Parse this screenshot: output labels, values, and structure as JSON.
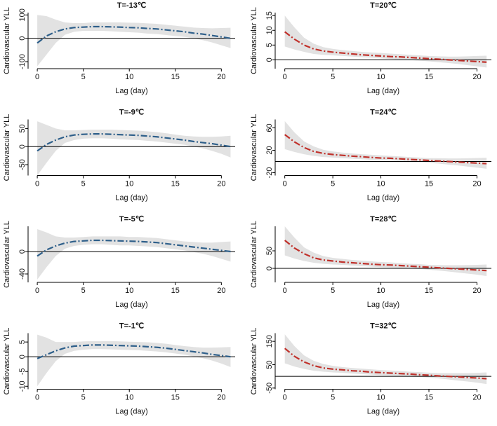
{
  "chart_data": [
    {
      "type": "line",
      "title": "T=-13℃",
      "ylabel": "Cardiovascular YLL",
      "xlabel": "Lag (day)",
      "color": "#2e5f8a",
      "band_color": "#e2e2e2",
      "hline": 0,
      "x": [
        0,
        1,
        2,
        3,
        4,
        5,
        6,
        7,
        8,
        9,
        10,
        11,
        12,
        13,
        14,
        15,
        16,
        17,
        18,
        19,
        20,
        21
      ],
      "xlim": [
        -1,
        21.5
      ],
      "xticks": [
        0,
        5,
        10,
        15,
        20
      ],
      "ylim": [
        -130,
        110
      ],
      "yticks": [
        -100,
        0,
        100
      ],
      "values": [
        -20,
        10,
        28,
        40,
        46,
        48,
        50,
        50,
        49,
        48,
        46,
        45,
        42,
        40,
        36,
        32,
        28,
        22,
        18,
        12,
        6,
        0
      ],
      "upper": [
        100,
        95,
        80,
        68,
        65,
        65,
        68,
        68,
        68,
        68,
        67,
        66,
        64,
        62,
        58,
        54,
        50,
        46,
        44,
        43,
        44,
        45
      ],
      "lower": [
        -120,
        -70,
        -20,
        15,
        28,
        32,
        32,
        32,
        30,
        28,
        26,
        24,
        20,
        18,
        14,
        10,
        6,
        0,
        -8,
        -18,
        -30,
        -42
      ]
    },
    {
      "type": "line",
      "title": "T=20℃",
      "ylabel": "Cardiovascular YLL",
      "xlabel": "Lag (day)",
      "color": "#c0312b",
      "band_color": "#e2e2e2",
      "hline": 0,
      "x": [
        0,
        1,
        2,
        3,
        4,
        5,
        6,
        7,
        8,
        9,
        10,
        11,
        12,
        13,
        14,
        15,
        16,
        17,
        18,
        19,
        20,
        21
      ],
      "xlim": [
        -1,
        21.5
      ],
      "xticks": [
        0,
        5,
        10,
        15,
        20
      ],
      "ylim": [
        -3,
        16
      ],
      "yticks": [
        0,
        5,
        10,
        15
      ],
      "values": [
        9.5,
        7,
        5,
        3.7,
        3,
        2.6,
        2.3,
        2,
        1.7,
        1.5,
        1.3,
        1.1,
        1,
        0.8,
        0.6,
        0.4,
        0.2,
        0,
        -0.2,
        -0.4,
        -0.6,
        -0.8
      ],
      "upper": [
        15,
        11,
        7.5,
        5.5,
        4.3,
        3.7,
        3.3,
        3,
        2.7,
        2.5,
        2.3,
        2.1,
        1.9,
        1.7,
        1.5,
        1.3,
        1.2,
        1.1,
        1.1,
        1.2,
        1.3,
        1.4
      ],
      "lower": [
        4.5,
        3.5,
        2.7,
        2,
        1.7,
        1.5,
        1.3,
        1.1,
        0.9,
        0.7,
        0.5,
        0.3,
        0.1,
        -0.1,
        -0.3,
        -0.5,
        -0.8,
        -1.1,
        -1.4,
        -1.8,
        -2.2,
        -2.6
      ]
    },
    {
      "type": "line",
      "title": "T=-9℃",
      "ylabel": "Cardiovascular YLL",
      "xlabel": "Lag (day)",
      "color": "#2e5f8a",
      "band_color": "#e2e2e2",
      "hline": 0,
      "x": [
        0,
        1,
        2,
        3,
        4,
        5,
        6,
        7,
        8,
        9,
        10,
        11,
        12,
        13,
        14,
        15,
        16,
        17,
        18,
        19,
        20,
        21
      ],
      "xlim": [
        -1,
        21.5
      ],
      "xticks": [
        0,
        5,
        10,
        15,
        20
      ],
      "ylim": [
        -80,
        75
      ],
      "yticks": [
        -50,
        0,
        50
      ],
      "values": [
        -12,
        6,
        18,
        27,
        32,
        34,
        35,
        35,
        34,
        33,
        32,
        31,
        29,
        27,
        24,
        21,
        18,
        14,
        11,
        8,
        4,
        0
      ],
      "upper": [
        70,
        60,
        50,
        45,
        45,
        46,
        47,
        47,
        47,
        46,
        45,
        44,
        42,
        40,
        37,
        33,
        30,
        28,
        27,
        27,
        28,
        30
      ],
      "lower": [
        -80,
        -45,
        -12,
        10,
        18,
        22,
        23,
        23,
        22,
        20,
        19,
        18,
        16,
        14,
        11,
        8,
        5,
        0,
        -5,
        -12,
        -20,
        -30
      ]
    },
    {
      "type": "line",
      "title": "T=24℃",
      "ylabel": "Cardiovascular YLL",
      "xlabel": "Lag (day)",
      "color": "#c0312b",
      "band_color": "#e2e2e2",
      "hline": 0,
      "x": [
        0,
        1,
        2,
        3,
        4,
        5,
        6,
        7,
        8,
        9,
        10,
        11,
        12,
        13,
        14,
        15,
        16,
        17,
        18,
        19,
        20,
        21
      ],
      "xlim": [
        -1,
        21.5
      ],
      "xticks": [
        0,
        5,
        10,
        15,
        20
      ],
      "ylim": [
        -25,
        75
      ],
      "yticks": [
        -20,
        20,
        60
      ],
      "values": [
        48,
        35,
        25,
        18,
        14.5,
        12.5,
        11,
        9.6,
        8.6,
        7.2,
        6.2,
        5.8,
        4.8,
        3.8,
        2.9,
        1.9,
        1,
        0,
        -1,
        -1.9,
        -2.9,
        -3.8
      ],
      "upper": [
        72,
        52,
        36,
        27,
        21,
        18,
        16,
        14.4,
        13,
        12,
        11,
        10,
        9,
        8,
        7,
        6,
        5.8,
        5.5,
        5.5,
        5.8,
        6.2,
        6.7
      ],
      "lower": [
        22,
        17,
        13,
        10,
        8,
        7,
        6,
        5,
        4,
        3,
        2,
        1.4,
        0.6,
        -0.4,
        -1.2,
        -2.4,
        -3.8,
        -5.4,
        -7,
        -9,
        -11,
        -13
      ]
    },
    {
      "type": "line",
      "title": "T=-5℃",
      "ylabel": "Cardiovascular YLL",
      "xlabel": "Lag (day)",
      "color": "#2e5f8a",
      "band_color": "#e2e2e2",
      "hline": 0,
      "x": [
        0,
        1,
        2,
        3,
        4,
        5,
        6,
        7,
        8,
        9,
        10,
        11,
        12,
        13,
        14,
        15,
        16,
        17,
        18,
        19,
        20,
        21
      ],
      "xlim": [
        -1,
        21.5
      ],
      "xticks": [
        0,
        5,
        10,
        15,
        20
      ],
      "ylim": [
        -55,
        45
      ],
      "yticks": [
        -40,
        0
      ],
      "values": [
        -8,
        3,
        10,
        15,
        18,
        19,
        20,
        20,
        19.5,
        19,
        18.5,
        18,
        17,
        16,
        14,
        12,
        10,
        8,
        6,
        4,
        2,
        0
      ],
      "upper": [
        40,
        34,
        27,
        25,
        25,
        26,
        27,
        27,
        27,
        27,
        26,
        26,
        25,
        24,
        22,
        20,
        18,
        17,
        16,
        16,
        17,
        18
      ],
      "lower": [
        -50,
        -28,
        -8,
        5,
        10,
        12,
        13,
        13,
        12,
        11,
        11,
        10,
        9,
        8,
        6,
        4,
        2,
        -1,
        -4,
        -8,
        -13,
        -18
      ]
    },
    {
      "type": "line",
      "title": "T=28℃",
      "ylabel": "Cardiovascular YLL",
      "xlabel": "Lag (day)",
      "color": "#c0312b",
      "band_color": "#e2e2e2",
      "hline": 0,
      "x": [
        0,
        1,
        2,
        3,
        4,
        5,
        6,
        7,
        8,
        9,
        10,
        11,
        12,
        13,
        14,
        15,
        16,
        17,
        18,
        19,
        20,
        21
      ],
      "xlim": [
        -1,
        21.5
      ],
      "xticks": [
        0,
        5,
        10,
        15,
        20
      ],
      "ylim": [
        -40,
        120
      ],
      "yticks": [
        0,
        50
      ],
      "values": [
        80,
        58,
        42,
        30,
        24,
        21,
        18,
        16,
        14,
        12,
        10.4,
        9.6,
        8,
        6.4,
        4.8,
        3.2,
        1.6,
        0,
        -1.6,
        -3.2,
        -4.8,
        -6.4
      ],
      "upper": [
        120,
        88,
        60,
        45,
        35,
        30,
        27,
        24,
        22,
        20,
        18,
        17,
        15,
        13,
        12,
        10,
        9.6,
        9,
        9,
        9.6,
        10,
        11
      ],
      "lower": [
        37,
        28,
        21,
        16,
        13,
        11,
        10,
        8,
        6.6,
        5,
        3.3,
        2.3,
        1,
        -0.6,
        -2,
        -4,
        -6.3,
        -9,
        -12,
        -15,
        -18,
        -22
      ]
    },
    {
      "type": "line",
      "title": "T=-1℃",
      "ylabel": "Cardiovascular YLL",
      "xlabel": "Lag (day)",
      "color": "#2e5f8a",
      "band_color": "#e2e2e2",
      "hline": 0,
      "x": [
        0,
        1,
        2,
        3,
        4,
        5,
        6,
        7,
        8,
        9,
        10,
        11,
        12,
        13,
        14,
        15,
        16,
        17,
        18,
        19,
        20,
        21
      ],
      "xlim": [
        -1,
        21.5
      ],
      "xticks": [
        0,
        5,
        10,
        15,
        20
      ],
      "ylim": [
        -11,
        8
      ],
      "yticks": [
        -10,
        -5,
        0,
        5
      ],
      "values": [
        -0.6,
        0.7,
        2,
        3,
        3.6,
        3.8,
        4,
        4,
        3.9,
        3.8,
        3.7,
        3.6,
        3.4,
        3.2,
        2.9,
        2.5,
        2.1,
        1.7,
        1.3,
        0.8,
        0.4,
        0
      ],
      "upper": [
        7.5,
        6.5,
        5,
        5,
        5,
        5.2,
        5.3,
        5.3,
        5.3,
        5.2,
        5.1,
        5,
        4.9,
        4.7,
        4.4,
        4,
        3.6,
        3.3,
        3.1,
        3.1,
        3.2,
        3.3
      ],
      "lower": [
        -10,
        -5.5,
        -1.5,
        1,
        2,
        2.4,
        2.6,
        2.6,
        2.5,
        2.4,
        2.3,
        2.2,
        2,
        1.8,
        1.5,
        1.1,
        0.7,
        0.1,
        -0.5,
        -1.3,
        -2.3,
        -3.5
      ]
    },
    {
      "type": "line",
      "title": "T=32℃",
      "ylabel": "Cardiovascular YLL",
      "xlabel": "Lag (day)",
      "color": "#c0312b",
      "band_color": "#e2e2e2",
      "hline": 0,
      "x": [
        0,
        1,
        2,
        3,
        4,
        5,
        6,
        7,
        8,
        9,
        10,
        11,
        12,
        13,
        14,
        15,
        16,
        17,
        18,
        19,
        20,
        21
      ],
      "xlim": [
        -1,
        21.5
      ],
      "xticks": [
        0,
        5,
        10,
        15,
        20
      ],
      "ylim": [
        -55,
        185
      ],
      "yticks": [
        -50,
        50,
        150
      ],
      "values": [
        120,
        86,
        62,
        46,
        36,
        31,
        28,
        24,
        22,
        18,
        16,
        14,
        12,
        10,
        7,
        5,
        2,
        0,
        -2,
        -5,
        -7,
        -10
      ],
      "upper": [
        180,
        130,
        90,
        67,
        53,
        45,
        40,
        36,
        33,
        30,
        27,
        25,
        23,
        20,
        18,
        16,
        14,
        14,
        14,
        14,
        15,
        17
      ],
      "lower": [
        56,
        42,
        32,
        24,
        20,
        17,
        15,
        12,
        10,
        7.5,
        5,
        3.5,
        1.5,
        -1,
        -3,
        -6,
        -9,
        -13,
        -18,
        -22,
        -27,
        -33
      ]
    }
  ]
}
